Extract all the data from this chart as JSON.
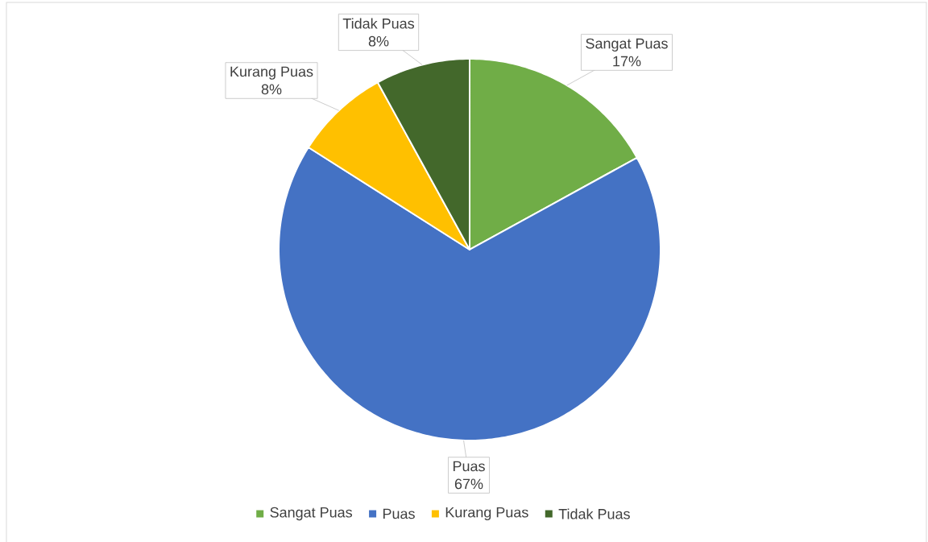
{
  "chart_data": {
    "type": "pie",
    "categories": [
      "Sangat Puas",
      "Puas",
      "Kurang Puas",
      "Tidak Puas"
    ],
    "values": [
      17,
      67,
      8,
      8
    ],
    "colors": [
      "#70ad47",
      "#4472c4",
      "#ffc000",
      "#43682b"
    ],
    "value_labels": [
      "17%",
      "67%",
      "8%",
      "8%"
    ],
    "legend": "bottom"
  }
}
